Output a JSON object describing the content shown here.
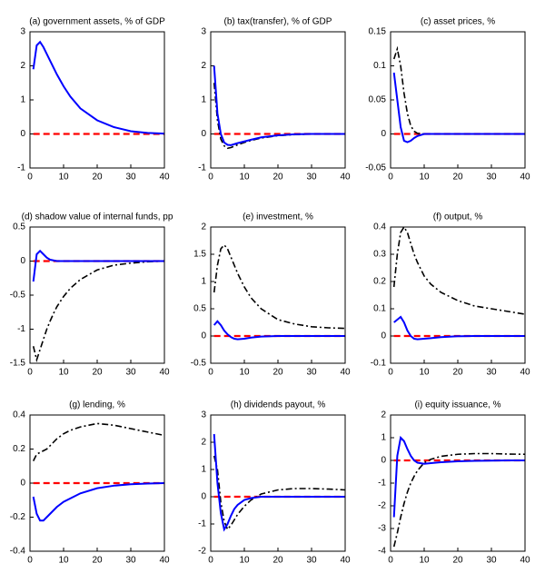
{
  "chart_data": [
    {
      "type": "line",
      "title": "(a) government assets, % of GDP",
      "x": [
        1,
        2,
        3,
        4,
        5,
        6,
        7,
        8,
        10,
        12,
        15,
        20,
        25,
        30,
        35,
        40
      ],
      "xlim": [
        0,
        40
      ],
      "xticks": [
        0,
        10,
        20,
        30,
        40
      ],
      "ylim": [
        -1,
        3
      ],
      "yticks": [
        -1,
        0,
        1,
        2,
        3
      ],
      "series": [
        {
          "color": "#ff0000",
          "dash": "dashed",
          "values": [
            0,
            0,
            0,
            0,
            0,
            0,
            0,
            0,
            0,
            0,
            0,
            0,
            0,
            0,
            0,
            0
          ]
        },
        {
          "color": "#0000ff",
          "dash": "solid",
          "values": [
            1.9,
            2.6,
            2.7,
            2.55,
            2.35,
            2.15,
            1.95,
            1.75,
            1.4,
            1.1,
            0.75,
            0.4,
            0.2,
            0.08,
            0.03,
            0.01
          ]
        }
      ]
    },
    {
      "type": "line",
      "title": "(b) tax(transfer), % of GDP",
      "x": [
        1,
        2,
        3,
        4,
        5,
        6,
        7,
        8,
        10,
        12,
        15,
        20,
        25,
        30,
        35,
        40
      ],
      "xlim": [
        0,
        40
      ],
      "xticks": [
        0,
        10,
        20,
        30,
        40
      ],
      "ylim": [
        -1,
        3
      ],
      "yticks": [
        -1,
        0,
        1,
        2,
        3
      ],
      "series": [
        {
          "color": "#ff0000",
          "dash": "dashed",
          "values": [
            0,
            0,
            0,
            0,
            0,
            0,
            0,
            0,
            0,
            0,
            0,
            0,
            0,
            0,
            0,
            0
          ]
        },
        {
          "color": "#000000",
          "dash": "dashdot",
          "values": [
            1.5,
            0.4,
            -0.15,
            -0.35,
            -0.42,
            -0.4,
            -0.36,
            -0.32,
            -0.25,
            -0.19,
            -0.12,
            -0.05,
            -0.02,
            0,
            0,
            0
          ]
        },
        {
          "color": "#0000ff",
          "dash": "solid",
          "values": [
            2.0,
            0.6,
            0.0,
            -0.25,
            -0.32,
            -0.33,
            -0.3,
            -0.27,
            -0.22,
            -0.17,
            -0.1,
            -0.04,
            -0.01,
            0,
            0,
            0
          ]
        }
      ]
    },
    {
      "type": "line",
      "title": "(c) asset prices, %",
      "x": [
        1,
        2,
        3,
        4,
        5,
        6,
        7,
        8,
        10,
        12,
        15,
        20,
        25,
        30,
        35,
        40
      ],
      "xlim": [
        0,
        40
      ],
      "xticks": [
        0,
        10,
        20,
        30,
        40
      ],
      "ylim": [
        -0.05,
        0.15
      ],
      "yticks": [
        -0.05,
        0,
        0.05,
        0.1,
        0.15
      ],
      "series": [
        {
          "color": "#ff0000",
          "dash": "dashed",
          "values": [
            0,
            0,
            0,
            0,
            0,
            0,
            0,
            0,
            0,
            0,
            0,
            0,
            0,
            0,
            0,
            0
          ]
        },
        {
          "color": "#000000",
          "dash": "dashdot",
          "values": [
            0.11,
            0.125,
            0.1,
            0.06,
            0.03,
            0.012,
            0.004,
            0.001,
            0,
            0,
            0,
            0,
            0,
            0,
            0,
            0
          ]
        },
        {
          "color": "#0000ff",
          "dash": "solid",
          "values": [
            0.09,
            0.05,
            0.01,
            -0.01,
            -0.012,
            -0.01,
            -0.006,
            -0.003,
            0,
            0,
            0,
            0,
            0,
            0,
            0,
            0
          ]
        }
      ]
    },
    {
      "type": "line",
      "title": "(d) shadow value of internal funds, pp",
      "x": [
        1,
        2,
        3,
        4,
        5,
        6,
        7,
        8,
        10,
        12,
        15,
        20,
        25,
        30,
        35,
        40
      ],
      "xlim": [
        0,
        40
      ],
      "xticks": [
        0,
        10,
        20,
        30,
        40
      ],
      "ylim": [
        -1.5,
        0.5
      ],
      "yticks": [
        -1.5,
        -1,
        -0.5,
        0,
        0.5
      ],
      "series": [
        {
          "color": "#ff0000",
          "dash": "dashed",
          "values": [
            0,
            0,
            0,
            0,
            0,
            0,
            0,
            0,
            0,
            0,
            0,
            0,
            0,
            0,
            0,
            0
          ]
        },
        {
          "color": "#000000",
          "dash": "dashdot",
          "values": [
            -1.25,
            -1.45,
            -1.3,
            -1.15,
            -1.0,
            -0.88,
            -0.77,
            -0.67,
            -0.52,
            -0.4,
            -0.27,
            -0.13,
            -0.06,
            -0.03,
            -0.01,
            0
          ]
        },
        {
          "color": "#0000ff",
          "dash": "solid",
          "values": [
            -0.3,
            0.1,
            0.15,
            0.1,
            0.05,
            0.02,
            0.01,
            0,
            0,
            0,
            0,
            0,
            0,
            0,
            0,
            0
          ]
        }
      ]
    },
    {
      "type": "line",
      "title": "(e) investment, %",
      "x": [
        1,
        2,
        3,
        4,
        5,
        6,
        7,
        8,
        10,
        12,
        15,
        20,
        25,
        30,
        35,
        40
      ],
      "xlim": [
        0,
        40
      ],
      "xticks": [
        0,
        10,
        20,
        30,
        40
      ],
      "ylim": [
        -0.5,
        2
      ],
      "yticks": [
        -0.5,
        0,
        0.5,
        1,
        1.5,
        2
      ],
      "series": [
        {
          "color": "#ff0000",
          "dash": "dashed",
          "values": [
            0,
            0,
            0,
            0,
            0,
            0,
            0,
            0,
            0,
            0,
            0,
            0,
            0,
            0,
            0,
            0
          ]
        },
        {
          "color": "#000000",
          "dash": "dashdot",
          "values": [
            0.8,
            1.3,
            1.6,
            1.67,
            1.6,
            1.45,
            1.3,
            1.15,
            0.9,
            0.7,
            0.5,
            0.3,
            0.22,
            0.17,
            0.15,
            0.14
          ]
        },
        {
          "color": "#0000ff",
          "dash": "solid",
          "values": [
            0.2,
            0.27,
            0.2,
            0.1,
            0.03,
            -0.02,
            -0.05,
            -0.06,
            -0.05,
            -0.03,
            -0.01,
            0,
            0,
            0,
            0,
            0
          ]
        }
      ]
    },
    {
      "type": "line",
      "title": "(f) output, %",
      "x": [
        1,
        2,
        3,
        4,
        5,
        6,
        7,
        8,
        10,
        12,
        15,
        20,
        25,
        30,
        35,
        40
      ],
      "xlim": [
        0,
        40
      ],
      "xticks": [
        0,
        10,
        20,
        30,
        40
      ],
      "ylim": [
        -0.1,
        0.4
      ],
      "yticks": [
        -0.1,
        0,
        0.1,
        0.2,
        0.3,
        0.4
      ],
      "series": [
        {
          "color": "#ff0000",
          "dash": "dashed",
          "values": [
            0,
            0,
            0,
            0,
            0,
            0,
            0,
            0,
            0,
            0,
            0,
            0,
            0,
            0,
            0,
            0
          ]
        },
        {
          "color": "#000000",
          "dash": "dashdot",
          "values": [
            0.18,
            0.3,
            0.38,
            0.4,
            0.38,
            0.34,
            0.3,
            0.27,
            0.22,
            0.19,
            0.16,
            0.13,
            0.11,
            0.1,
            0.09,
            0.08
          ]
        },
        {
          "color": "#0000ff",
          "dash": "solid",
          "values": [
            0.05,
            0.06,
            0.07,
            0.05,
            0.02,
            0,
            -0.01,
            -0.012,
            -0.01,
            -0.008,
            -0.004,
            -0.001,
            0,
            0,
            0,
            0
          ]
        }
      ]
    },
    {
      "type": "line",
      "title": "(g) lending, %",
      "x": [
        1,
        2,
        3,
        4,
        5,
        6,
        7,
        8,
        10,
        12,
        15,
        20,
        25,
        30,
        35,
        40
      ],
      "xlim": [
        0,
        40
      ],
      "xticks": [
        0,
        10,
        20,
        30,
        40
      ],
      "ylim": [
        -0.4,
        0.4
      ],
      "yticks": [
        -0.4,
        -0.2,
        0,
        0.2,
        0.4
      ],
      "series": [
        {
          "color": "#ff0000",
          "dash": "dashed",
          "values": [
            0,
            0,
            0,
            0,
            0,
            0,
            0,
            0,
            0,
            0,
            0,
            0,
            0,
            0,
            0,
            0
          ]
        },
        {
          "color": "#000000",
          "dash": "dashdot",
          "values": [
            0.13,
            0.17,
            0.18,
            0.19,
            0.2,
            0.22,
            0.24,
            0.26,
            0.29,
            0.31,
            0.33,
            0.35,
            0.34,
            0.32,
            0.3,
            0.28
          ]
        },
        {
          "color": "#0000ff",
          "dash": "solid",
          "values": [
            -0.08,
            -0.18,
            -0.22,
            -0.22,
            -0.2,
            -0.18,
            -0.16,
            -0.14,
            -0.11,
            -0.09,
            -0.06,
            -0.03,
            -0.015,
            -0.007,
            -0.003,
            0
          ]
        }
      ]
    },
    {
      "type": "line",
      "title": "(h) dividends payout, %",
      "x": [
        1,
        2,
        3,
        4,
        5,
        6,
        7,
        8,
        10,
        12,
        15,
        20,
        25,
        30,
        35,
        40
      ],
      "xlim": [
        0,
        40
      ],
      "xticks": [
        0,
        10,
        20,
        30,
        40
      ],
      "ylim": [
        -2,
        3
      ],
      "yticks": [
        -2,
        -1,
        0,
        1,
        2,
        3
      ],
      "series": [
        {
          "color": "#ff0000",
          "dash": "dashed",
          "values": [
            0,
            0,
            0,
            0,
            0,
            0,
            0,
            0,
            0,
            0,
            0,
            0,
            0,
            0,
            0,
            0
          ]
        },
        {
          "color": "#000000",
          "dash": "dashdot",
          "values": [
            1.5,
            1.0,
            -0.2,
            -0.9,
            -1.2,
            -1.05,
            -0.85,
            -0.65,
            -0.35,
            -0.12,
            0.1,
            0.25,
            0.3,
            0.3,
            0.28,
            0.25
          ]
        },
        {
          "color": "#0000ff",
          "dash": "solid",
          "values": [
            2.3,
            0.5,
            -0.6,
            -1.2,
            -1.0,
            -0.7,
            -0.45,
            -0.3,
            -0.12,
            -0.05,
            0,
            0,
            0,
            0,
            0,
            0
          ]
        }
      ]
    },
    {
      "type": "line",
      "title": "(i) equity issuance, %",
      "x": [
        1,
        2,
        3,
        4,
        5,
        6,
        7,
        8,
        10,
        12,
        15,
        20,
        25,
        30,
        35,
        40
      ],
      "xlim": [
        0,
        40
      ],
      "xticks": [
        0,
        10,
        20,
        30,
        40
      ],
      "ylim": [
        -4,
        2
      ],
      "yticks": [
        -4,
        -3,
        -2,
        -1,
        0,
        1,
        2
      ],
      "series": [
        {
          "color": "#ff0000",
          "dash": "dashed",
          "values": [
            0,
            0,
            0,
            0,
            0,
            0,
            0,
            0,
            0,
            0,
            0,
            0,
            0,
            0,
            0,
            0
          ]
        },
        {
          "color": "#000000",
          "dash": "dashdot",
          "values": [
            -3.8,
            -3.2,
            -2.5,
            -1.9,
            -1.4,
            -1.0,
            -0.7,
            -0.45,
            -0.1,
            0.05,
            0.18,
            0.27,
            0.3,
            0.3,
            0.28,
            0.27
          ]
        },
        {
          "color": "#0000ff",
          "dash": "solid",
          "values": [
            -2.5,
            0.2,
            1.0,
            0.85,
            0.5,
            0.2,
            0,
            -0.1,
            -0.15,
            -0.12,
            -0.08,
            -0.04,
            -0.02,
            -0.01,
            0,
            0
          ]
        }
      ]
    }
  ]
}
